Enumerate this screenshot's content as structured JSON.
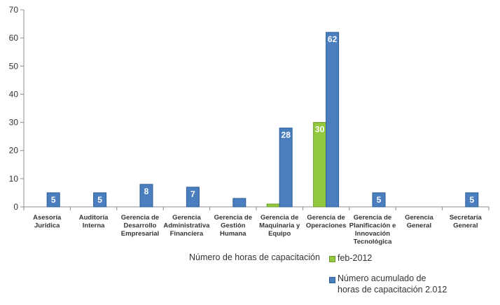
{
  "chart_data": {
    "type": "bar",
    "legend_title": "Número de horas de capacitación",
    "categories": [
      [
        "Asesoría",
        "Jurídica"
      ],
      [
        "Auditoría",
        "Interna"
      ],
      [
        "Gerencia de",
        "Desarrollo",
        "Empresarial"
      ],
      [
        "Gerencia",
        "Administrativa",
        "Financiera"
      ],
      [
        "Gerencia de",
        "Gestión",
        "Humana"
      ],
      [
        "Gerencia de",
        "Maquinaria y",
        "Equipo"
      ],
      [
        "Gerencia de",
        "Operaciones"
      ],
      [
        "Gerencia de",
        "Planificación e",
        "Innovación",
        "Tecnológica"
      ],
      [
        "Gerencia",
        "General"
      ],
      [
        "Secretaría",
        "General"
      ]
    ],
    "series": [
      {
        "name": "feb-2012",
        "color": "#92c83e",
        "values": [
          0,
          0,
          0,
          0,
          0,
          1,
          30,
          0,
          0,
          0
        ],
        "labels": [
          "",
          "",
          "",
          "",
          "",
          "",
          "30",
          "",
          "",
          ""
        ]
      },
      {
        "name": "Número acumulado de horas de capacitación 2.012",
        "name_lines": [
          "Número acumulado de",
          "horas de capacitación 2.012"
        ],
        "color": "#4a7ebf",
        "values": [
          5,
          5,
          8,
          7,
          3,
          28,
          62,
          5,
          0,
          5
        ],
        "labels": [
          "5",
          "5",
          "8",
          "7",
          "",
          "28",
          "62",
          "5",
          "",
          "5"
        ]
      }
    ],
    "ylim": [
      0,
      70
    ],
    "yticks": [
      0,
      10,
      20,
      30,
      40,
      50,
      60,
      70
    ],
    "grid": false,
    "legend_position": "bottom-right"
  }
}
